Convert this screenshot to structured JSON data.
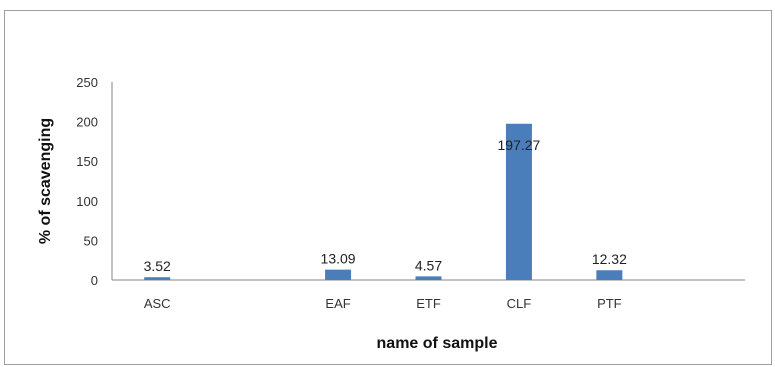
{
  "chart_data": {
    "type": "bar",
    "categories": [
      "ASC",
      "",
      "EAF",
      "ETF",
      "CLF",
      "PTF",
      ""
    ],
    "values": [
      3.52,
      null,
      13.09,
      4.57,
      197.27,
      12.32,
      null
    ],
    "data_labels": [
      "3.52",
      "",
      "13.09",
      "4.57",
      "197.27",
      "12.32",
      ""
    ],
    "xlabel": "name of sample",
    "ylabel": "% of scavenging",
    "ylim": [
      0,
      250
    ],
    "yticks": [
      0,
      50,
      100,
      150,
      200,
      250
    ],
    "grid": false,
    "bar_color": "#4a7ebb"
  }
}
